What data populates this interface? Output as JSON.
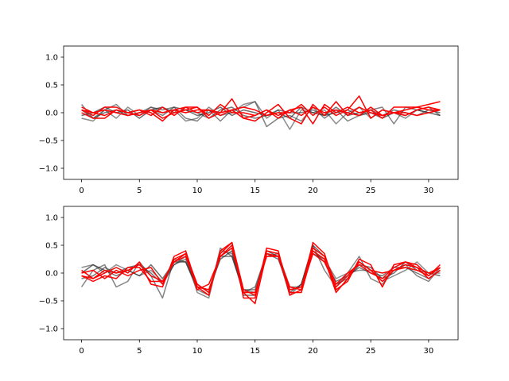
{
  "chart_data": [
    {
      "type": "line",
      "title": "",
      "xlabel": "",
      "ylabel": "",
      "xlim": [
        -1.55,
        32.55
      ],
      "ylim": [
        -1.2,
        1.2
      ],
      "xticks": [
        0,
        5,
        10,
        15,
        20,
        25,
        30
      ],
      "yticks": [
        -1.0,
        -0.5,
        0.0,
        0.5,
        1.0
      ],
      "xtick_labels": [
        "0",
        "5",
        "10",
        "15",
        "20",
        "25",
        "30"
      ],
      "ytick_labels": [
        "−1.0",
        "−0.5",
        "0.0",
        "0.5",
        "1.0"
      ],
      "grid": false,
      "legend": false,
      "series_colors": [
        "#000000",
        "#ff0000"
      ],
      "series": [
        {
          "color": "#404040",
          "values": [
            0.15,
            -0.1,
            0.05,
            0.15,
            -0.05,
            0.0,
            0.1,
            0.05,
            0.1,
            -0.1,
            -0.15,
            0.05,
            -0.15,
            0.05,
            0.1,
            0.2,
            -0.25,
            -0.1,
            -0.05,
            -0.15,
            0.1,
            -0.1,
            0.05,
            -0.15,
            -0.05,
            0.05,
            0.1,
            -0.2,
            0.1,
            0.05,
            0.1,
            -0.05
          ]
        },
        {
          "color": "#505050",
          "values": [
            -0.1,
            -0.15,
            0.05,
            -0.1,
            0.1,
            -0.05,
            0.1,
            0.0,
            0.05,
            -0.15,
            -0.1,
            0.1,
            -0.05,
            0.0,
            0.15,
            0.2,
            -0.1,
            0.05,
            -0.3,
            0.05,
            0.0,
            0.05,
            -0.2,
            0.0,
            0.1,
            -0.1,
            0.05,
            0.0,
            -0.1,
            0.05,
            0.0,
            0.05
          ]
        },
        {
          "color": "#202020",
          "values": [
            -0.05,
            0.0,
            0.1,
            0.0,
            0.05,
            -0.1,
            0.05,
            0.1,
            0.0,
            0.05,
            -0.05,
            0.0,
            0.1,
            -0.05,
            0.05,
            0.0,
            -0.05,
            0.0,
            -0.1,
            0.1,
            0.0,
            -0.05,
            0.0,
            0.05,
            -0.05,
            0.0,
            -0.1,
            0.0,
            -0.05,
            0.05,
            0.0,
            -0.05
          ]
        },
        {
          "color": "#303030",
          "values": [
            0.05,
            -0.1,
            0.0,
            0.05,
            -0.05,
            0.0,
            0.05,
            -0.05,
            0.1,
            0.05,
            0.0,
            -0.1,
            0.05,
            0.1,
            -0.05,
            -0.1,
            -0.05,
            0.05,
            0.0,
            0.0,
            0.05,
            -0.05,
            0.1,
            -0.05,
            0.0,
            0.05,
            -0.05,
            0.05,
            0.0,
            -0.05,
            0.05,
            0.0
          ]
        },
        {
          "color": "#ff0000",
          "values": [
            0.05,
            -0.05,
            0.1,
            0.1,
            0.0,
            0.05,
            -0.05,
            0.1,
            -0.05,
            0.1,
            0.0,
            0.05,
            0.0,
            0.25,
            -0.1,
            -0.15,
            0.0,
            0.15,
            -0.1,
            -0.2,
            0.15,
            -0.05,
            0.2,
            -0.05,
            0.1,
            0.0,
            -0.05,
            0.0,
            0.05,
            0.1,
            0.05,
            0.05
          ]
        },
        {
          "color": "#ff0000",
          "values": [
            0.1,
            0.0,
            -0.05,
            0.05,
            0.0,
            0.05,
            0.0,
            -0.15,
            0.05,
            0.1,
            0.1,
            -0.1,
            0.0,
            0.05,
            0.1,
            0.05,
            -0.05,
            0.0,
            0.0,
            0.15,
            -0.05,
            0.1,
            -0.05,
            0.05,
            0.3,
            -0.1,
            0.05,
            0.0,
            -0.05,
            0.05,
            0.1,
            0.05
          ]
        },
        {
          "color": "#ff0000",
          "values": [
            0.0,
            -0.1,
            -0.1,
            0.05,
            0.0,
            -0.05,
            0.05,
            -0.1,
            0.0,
            0.05,
            0.1,
            -0.05,
            0.15,
            0.0,
            0.0,
            -0.05,
            0.05,
            -0.1,
            0.05,
            0.1,
            -0.2,
            0.15,
            0.0,
            0.1,
            0.0,
            0.05,
            -0.1,
            0.1,
            0.1,
            0.1,
            0.15,
            0.2
          ]
        },
        {
          "color": "#ff0000",
          "values": [
            0.05,
            0.0,
            0.05,
            0.0,
            -0.05,
            0.0,
            0.05,
            0.0,
            0.05,
            0.0,
            0.05,
            0.05,
            -0.05,
            0.05,
            -0.1,
            -0.05,
            0.05,
            -0.05,
            0.05,
            -0.05,
            0.1,
            0.0,
            0.05,
            0.0,
            -0.05,
            0.1,
            -0.05,
            0.0,
            0.0,
            -0.05,
            0.0,
            0.05
          ]
        }
      ]
    },
    {
      "type": "line",
      "title": "",
      "xlabel": "",
      "ylabel": "",
      "xlim": [
        -1.55,
        32.55
      ],
      "ylim": [
        -1.2,
        1.2
      ],
      "xticks": [
        0,
        5,
        10,
        15,
        20,
        25,
        30
      ],
      "yticks": [
        -1.0,
        -0.5,
        0.0,
        0.5,
        1.0
      ],
      "xtick_labels": [
        "0",
        "5",
        "10",
        "15",
        "20",
        "25",
        "30"
      ],
      "ytick_labels": [
        "−1.0",
        "−0.5",
        "0.0",
        "0.5",
        "1.0"
      ],
      "grid": false,
      "legend": false,
      "series_colors": [
        "#000000",
        "#ff0000"
      ],
      "series": [
        {
          "color": "#404040",
          "values": [
            -0.25,
            0.05,
            0.15,
            -0.25,
            -0.15,
            0.2,
            -0.05,
            -0.45,
            0.25,
            0.2,
            -0.3,
            -0.4,
            0.45,
            0.3,
            -0.35,
            -0.25,
            0.35,
            0.3,
            -0.4,
            -0.2,
            0.5,
            0.05,
            -0.25,
            0.0,
            0.3,
            -0.1,
            -0.2,
            0.05,
            0.15,
            -0.05,
            -0.15,
            0.1
          ]
        },
        {
          "color": "#505050",
          "values": [
            0.1,
            0.15,
            0.0,
            0.15,
            0.05,
            -0.05,
            0.05,
            -0.15,
            0.15,
            0.3,
            -0.35,
            -0.45,
            0.4,
            0.35,
            -0.3,
            -0.35,
            0.3,
            0.35,
            -0.25,
            -0.25,
            0.35,
            0.25,
            -0.1,
            0.0,
            0.05,
            0.05,
            -0.15,
            -0.05,
            0.05,
            0.2,
            0.0,
            0.0
          ]
        },
        {
          "color": "#202020",
          "values": [
            0.0,
            0.15,
            0.05,
            -0.05,
            0.05,
            -0.05,
            0.15,
            -0.1,
            0.2,
            0.2,
            -0.25,
            -0.3,
            0.25,
            0.4,
            -0.4,
            -0.4,
            0.4,
            0.3,
            -0.35,
            -0.2,
            0.5,
            0.3,
            -0.2,
            -0.1,
            0.15,
            0.1,
            -0.1,
            0.0,
            0.2,
            0.05,
            0.0,
            -0.05
          ]
        },
        {
          "color": "#303030",
          "values": [
            -0.1,
            -0.05,
            0.1,
            0.0,
            0.1,
            0.15,
            0.0,
            -0.2,
            0.15,
            0.25,
            -0.2,
            -0.35,
            0.3,
            0.3,
            -0.3,
            -0.3,
            0.35,
            0.25,
            -0.3,
            -0.25,
            0.4,
            0.2,
            -0.15,
            -0.05,
            0.1,
            0.0,
            -0.05,
            0.1,
            0.1,
            0.0,
            -0.1,
            0.05
          ]
        },
        {
          "color": "#ff0000",
          "values": [
            0.05,
            -0.1,
            0.0,
            0.1,
            0.0,
            0.2,
            -0.2,
            -0.25,
            0.3,
            0.4,
            -0.25,
            -0.4,
            0.4,
            0.55,
            -0.45,
            -0.45,
            0.45,
            0.4,
            -0.4,
            -0.3,
            0.55,
            0.35,
            -0.3,
            -0.15,
            0.25,
            0.15,
            -0.25,
            0.15,
            0.2,
            0.15,
            -0.05,
            0.15
          ]
        },
        {
          "color": "#ff0000",
          "values": [
            -0.05,
            -0.15,
            -0.05,
            -0.1,
            0.1,
            0.1,
            -0.15,
            -0.15,
            0.2,
            0.35,
            -0.3,
            -0.2,
            0.3,
            0.5,
            -0.35,
            -0.55,
            0.35,
            0.3,
            -0.35,
            -0.35,
            0.4,
            0.25,
            -0.35,
            -0.1,
            0.2,
            0.05,
            -0.15,
            0.05,
            0.1,
            0.05,
            -0.05,
            0.1
          ]
        },
        {
          "color": "#ff0000",
          "values": [
            0.0,
            0.05,
            -0.1,
            0.05,
            -0.05,
            0.05,
            0.1,
            -0.2,
            0.25,
            0.35,
            -0.2,
            -0.35,
            0.35,
            0.55,
            -0.3,
            -0.4,
            0.4,
            0.35,
            -0.3,
            -0.25,
            0.45,
            0.3,
            -0.2,
            0.0,
            0.15,
            0.0,
            -0.1,
            0.1,
            0.2,
            0.1,
            -0.1,
            0.05
          ]
        },
        {
          "color": "#ff0000",
          "values": [
            -0.05,
            -0.1,
            0.05,
            0.0,
            0.05,
            0.15,
            -0.05,
            -0.15,
            0.2,
            0.3,
            -0.25,
            -0.3,
            0.3,
            0.45,
            -0.35,
            -0.35,
            0.3,
            0.3,
            -0.25,
            -0.3,
            0.35,
            0.2,
            -0.25,
            -0.05,
            0.2,
            0.05,
            0.0,
            0.05,
            0.15,
            0.1,
            0.0,
            0.1
          ]
        }
      ]
    }
  ]
}
